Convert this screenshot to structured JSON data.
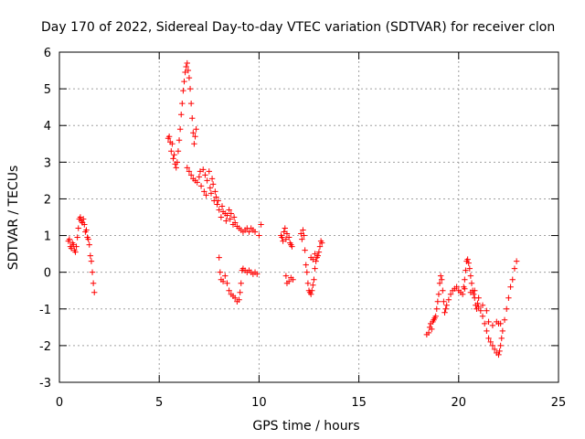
{
  "chart_data": {
    "type": "scatter",
    "title": "Day 170 of 2022, Sidereal Day-to-day VTEC variation (SDTVAR) for receiver clon",
    "xlabel": "GPS time / hours",
    "ylabel": "SDTVAR / TECUs",
    "xlim": [
      0,
      25
    ],
    "ylim": [
      -3,
      6
    ],
    "xticks": [
      0,
      5,
      10,
      15,
      20,
      25
    ],
    "yticks": [
      -3,
      -2,
      -1,
      0,
      1,
      2,
      3,
      4,
      5,
      6
    ],
    "grid": true,
    "marker": "+",
    "color": "#ff0000",
    "series": [
      {
        "name": "SDTVAR",
        "points": [
          [
            0.45,
            0.85
          ],
          [
            0.5,
            0.9
          ],
          [
            0.55,
            0.7
          ],
          [
            0.6,
            0.65
          ],
          [
            0.65,
            0.8
          ],
          [
            0.7,
            0.75
          ],
          [
            0.75,
            0.6
          ],
          [
            0.8,
            0.55
          ],
          [
            0.85,
            0.7
          ],
          [
            0.9,
            0.95
          ],
          [
            0.95,
            1.2
          ],
          [
            1.0,
            1.45
          ],
          [
            1.05,
            1.5
          ],
          [
            1.1,
            1.4
          ],
          [
            1.15,
            1.35
          ],
          [
            1.2,
            1.45
          ],
          [
            1.25,
            1.3
          ],
          [
            1.3,
            1.1
          ],
          [
            1.35,
            1.15
          ],
          [
            1.4,
            0.95
          ],
          [
            1.45,
            0.9
          ],
          [
            1.5,
            0.75
          ],
          [
            1.55,
            0.45
          ],
          [
            1.6,
            0.3
          ],
          [
            1.65,
            0.0
          ],
          [
            1.7,
            -0.3
          ],
          [
            1.75,
            -0.55
          ],
          [
            5.45,
            3.65
          ],
          [
            5.5,
            3.7
          ],
          [
            5.55,
            3.55
          ],
          [
            5.6,
            3.3
          ],
          [
            5.65,
            3.5
          ],
          [
            5.7,
            3.1
          ],
          [
            5.75,
            3.2
          ],
          [
            5.8,
            2.95
          ],
          [
            5.85,
            2.85
          ],
          [
            5.9,
            3.0
          ],
          [
            5.95,
            3.3
          ],
          [
            6.0,
            3.6
          ],
          [
            6.05,
            3.9
          ],
          [
            6.1,
            4.3
          ],
          [
            6.15,
            4.6
          ],
          [
            6.2,
            4.95
          ],
          [
            6.25,
            5.2
          ],
          [
            6.3,
            5.45
          ],
          [
            6.35,
            5.6
          ],
          [
            6.4,
            5.7
          ],
          [
            6.45,
            5.5
          ],
          [
            6.5,
            5.3
          ],
          [
            6.55,
            5.0
          ],
          [
            6.6,
            4.6
          ],
          [
            6.65,
            4.2
          ],
          [
            6.7,
            3.8
          ],
          [
            6.75,
            3.5
          ],
          [
            6.8,
            3.7
          ],
          [
            6.85,
            3.9
          ],
          [
            6.4,
            2.85
          ],
          [
            6.5,
            2.75
          ],
          [
            6.6,
            2.65
          ],
          [
            6.7,
            2.55
          ],
          [
            6.8,
            2.5
          ],
          [
            6.9,
            2.45
          ],
          [
            7.0,
            2.6
          ],
          [
            7.05,
            2.75
          ],
          [
            7.1,
            2.35
          ],
          [
            7.2,
            2.8
          ],
          [
            7.25,
            2.2
          ],
          [
            7.3,
            2.65
          ],
          [
            7.35,
            2.1
          ],
          [
            7.4,
            2.5
          ],
          [
            7.5,
            2.75
          ],
          [
            7.55,
            2.3
          ],
          [
            7.6,
            2.15
          ],
          [
            7.65,
            2.55
          ],
          [
            7.7,
            2.4
          ],
          [
            7.75,
            1.95
          ],
          [
            7.8,
            2.2
          ],
          [
            7.85,
            2.05
          ],
          [
            7.9,
            1.85
          ],
          [
            7.95,
            1.95
          ],
          [
            8.0,
            1.7
          ],
          [
            8.1,
            1.5
          ],
          [
            8.15,
            1.8
          ],
          [
            8.2,
            1.65
          ],
          [
            8.3,
            1.6
          ],
          [
            8.35,
            1.4
          ],
          [
            8.4,
            1.55
          ],
          [
            8.5,
            1.7
          ],
          [
            8.55,
            1.45
          ],
          [
            8.6,
            1.6
          ],
          [
            8.7,
            1.3
          ],
          [
            8.75,
            1.5
          ],
          [
            8.8,
            1.35
          ],
          [
            8.9,
            1.25
          ],
          [
            9.0,
            1.2
          ],
          [
            9.1,
            1.15
          ],
          [
            9.2,
            1.1
          ],
          [
            9.3,
            1.15
          ],
          [
            9.4,
            1.2
          ],
          [
            9.5,
            1.1
          ],
          [
            9.6,
            1.2
          ],
          [
            9.7,
            1.15
          ],
          [
            9.8,
            1.1
          ],
          [
            10.0,
            1.0
          ],
          [
            10.1,
            1.3
          ],
          [
            8.0,
            0.4
          ],
          [
            8.05,
            0.0
          ],
          [
            8.1,
            -0.2
          ],
          [
            8.2,
            -0.25
          ],
          [
            8.3,
            -0.1
          ],
          [
            8.4,
            -0.3
          ],
          [
            8.5,
            -0.5
          ],
          [
            8.6,
            -0.6
          ],
          [
            8.7,
            -0.65
          ],
          [
            8.8,
            -0.7
          ],
          [
            8.9,
            -0.8
          ],
          [
            9.0,
            -0.75
          ],
          [
            9.05,
            -0.55
          ],
          [
            9.1,
            -0.3
          ],
          [
            9.15,
            0.05
          ],
          [
            9.2,
            0.1
          ],
          [
            9.3,
            0.05
          ],
          [
            9.4,
            0.0
          ],
          [
            9.5,
            0.05
          ],
          [
            9.6,
            0.0
          ],
          [
            9.7,
            -0.05
          ],
          [
            9.8,
            0.0
          ],
          [
            9.9,
            -0.05
          ],
          [
            11.1,
            1.0
          ],
          [
            11.15,
            0.95
          ],
          [
            11.2,
            0.85
          ],
          [
            11.25,
            1.1
          ],
          [
            11.3,
            1.2
          ],
          [
            11.35,
            0.9
          ],
          [
            11.4,
            1.05
          ],
          [
            11.5,
            0.95
          ],
          [
            11.55,
            0.8
          ],
          [
            11.6,
            0.75
          ],
          [
            11.65,
            0.7
          ],
          [
            11.35,
            -0.1
          ],
          [
            11.4,
            -0.3
          ],
          [
            11.5,
            -0.25
          ],
          [
            11.6,
            -0.15
          ],
          [
            11.7,
            -0.2
          ],
          [
            12.1,
            1.05
          ],
          [
            12.15,
            0.9
          ],
          [
            12.2,
            1.15
          ],
          [
            12.25,
            1.0
          ],
          [
            12.3,
            0.6
          ],
          [
            12.35,
            0.2
          ],
          [
            12.4,
            0.0
          ],
          [
            12.45,
            -0.3
          ],
          [
            12.5,
            -0.5
          ],
          [
            12.55,
            -0.55
          ],
          [
            12.6,
            -0.6
          ],
          [
            12.65,
            -0.5
          ],
          [
            12.7,
            -0.35
          ],
          [
            12.75,
            -0.2
          ],
          [
            12.8,
            0.1
          ],
          [
            12.85,
            0.3
          ],
          [
            12.9,
            0.4
          ],
          [
            12.95,
            0.45
          ],
          [
            13.0,
            0.55
          ],
          [
            13.05,
            0.7
          ],
          [
            13.1,
            0.85
          ],
          [
            13.15,
            0.8
          ],
          [
            12.6,
            0.4
          ],
          [
            12.7,
            0.35
          ],
          [
            12.8,
            0.5
          ],
          [
            18.4,
            -1.7
          ],
          [
            18.5,
            -1.65
          ],
          [
            18.55,
            -1.5
          ],
          [
            18.6,
            -1.4
          ],
          [
            18.65,
            -1.55
          ],
          [
            18.7,
            -1.35
          ],
          [
            18.75,
            -1.3
          ],
          [
            18.8,
            -1.25
          ],
          [
            18.85,
            -1.2
          ],
          [
            18.9,
            -1.0
          ],
          [
            18.95,
            -0.8
          ],
          [
            19.0,
            -0.6
          ],
          [
            19.05,
            -0.3
          ],
          [
            19.1,
            -0.1
          ],
          [
            19.15,
            -0.2
          ],
          [
            19.2,
            -0.5
          ],
          [
            19.25,
            -0.8
          ],
          [
            19.3,
            -1.1
          ],
          [
            19.35,
            -1.0
          ],
          [
            19.4,
            -0.9
          ],
          [
            19.5,
            -0.75
          ],
          [
            19.6,
            -0.6
          ],
          [
            19.7,
            -0.5
          ],
          [
            19.8,
            -0.45
          ],
          [
            19.9,
            -0.4
          ],
          [
            20.0,
            -0.5
          ],
          [
            20.1,
            -0.55
          ],
          [
            20.2,
            -0.6
          ],
          [
            20.25,
            -0.4
          ],
          [
            20.3,
            -0.2
          ],
          [
            20.35,
            0.05
          ],
          [
            20.4,
            0.3
          ],
          [
            20.45,
            0.35
          ],
          [
            20.5,
            0.25
          ],
          [
            20.55,
            0.1
          ],
          [
            20.6,
            -0.1
          ],
          [
            20.65,
            -0.3
          ],
          [
            20.7,
            -0.5
          ],
          [
            20.75,
            -0.6
          ],
          [
            20.8,
            -0.7
          ],
          [
            20.85,
            -0.9
          ],
          [
            20.9,
            -1.0
          ],
          [
            20.95,
            -0.85
          ],
          [
            21.0,
            -0.95
          ],
          [
            21.1,
            -1.05
          ],
          [
            21.2,
            -1.2
          ],
          [
            21.3,
            -1.4
          ],
          [
            21.4,
            -1.6
          ],
          [
            21.5,
            -1.8
          ],
          [
            21.6,
            -1.9
          ],
          [
            21.7,
            -2.0
          ],
          [
            21.8,
            -2.1
          ],
          [
            21.9,
            -2.2
          ],
          [
            22.0,
            -2.25
          ],
          [
            22.05,
            -2.15
          ],
          [
            22.1,
            -2.0
          ],
          [
            22.15,
            -1.8
          ],
          [
            22.2,
            -1.6
          ],
          [
            22.3,
            -1.3
          ],
          [
            22.4,
            -1.0
          ],
          [
            22.5,
            -0.7
          ],
          [
            22.6,
            -0.4
          ],
          [
            22.7,
            -0.2
          ],
          [
            22.8,
            0.1
          ],
          [
            22.9,
            0.3
          ],
          [
            20.3,
            -0.45
          ],
          [
            20.6,
            -0.55
          ],
          [
            20.8,
            -0.5
          ],
          [
            21.0,
            -0.7
          ],
          [
            21.2,
            -0.9
          ],
          [
            21.4,
            -1.05
          ],
          [
            21.5,
            -1.35
          ],
          [
            21.7,
            -1.45
          ],
          [
            21.9,
            -1.35
          ],
          [
            22.0,
            -1.4
          ],
          [
            22.1,
            -1.4
          ]
        ]
      }
    ]
  }
}
